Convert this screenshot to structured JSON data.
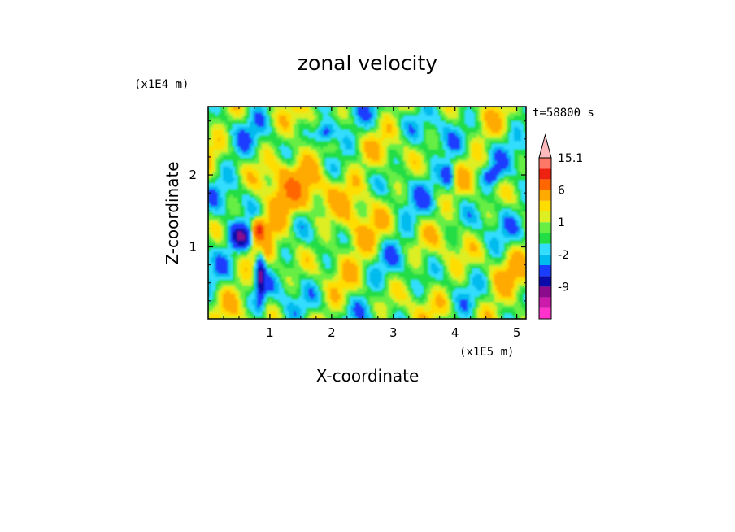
{
  "chart_data": {
    "type": "heatmap",
    "title": "zonal velocity",
    "xlabel": "X-coordinate",
    "ylabel": "Z-coordinate",
    "x_scale_label": "(x1E5 m)",
    "y_scale_label": "(x1E4 m)",
    "time_label": "t=58800 s",
    "xlim": [
      0,
      5.15
    ],
    "ylim": [
      0,
      2.95
    ],
    "x_ticks": [
      1,
      2,
      3,
      4,
      5
    ],
    "y_ticks": [
      1,
      2
    ],
    "colorbar": {
      "levels": [
        -15,
        -12,
        -9,
        -6,
        -3,
        -2,
        -1,
        0,
        1,
        2,
        3,
        6,
        9,
        12,
        15.1
      ],
      "colors": [
        "#ff33cc",
        "#cc1aaa",
        "#8c0a8c",
        "#0a0aaa",
        "#1a3cff",
        "#00bbee",
        "#33ddff",
        "#22dd44",
        "#66ee44",
        "#ddee22",
        "#ffdd00",
        "#ffaa00",
        "#ff6600",
        "#ee2211",
        "#ff7766",
        "#ffbbbb"
      ],
      "tick_labels": [
        {
          "value": 15.1,
          "label": "15.1"
        },
        {
          "value": 6,
          "label": "6"
        },
        {
          "value": 1,
          "label": "1"
        },
        {
          "value": -2,
          "label": "-2"
        },
        {
          "value": -9,
          "label": "-9"
        }
      ]
    }
  }
}
